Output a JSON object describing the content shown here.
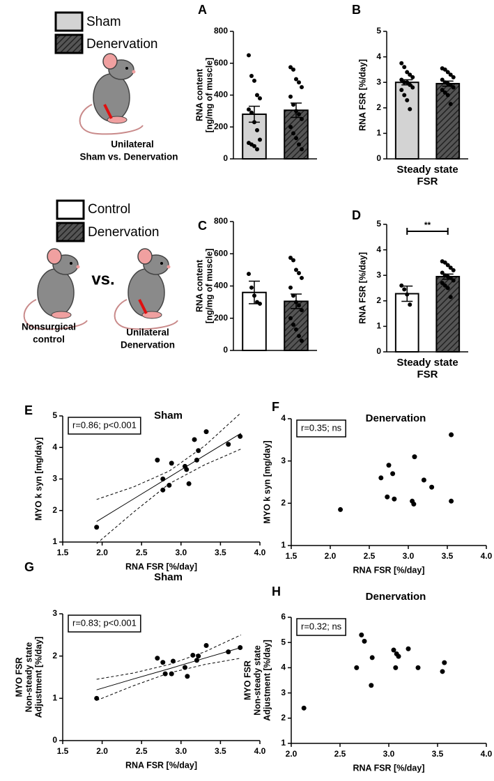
{
  "legends": [
    {
      "items": [
        "Sham",
        "Denervation"
      ]
    },
    {
      "items": [
        "Control",
        "Denervation"
      ]
    }
  ],
  "illustrations": [
    {
      "caption": [
        "Unilateral",
        "Sham vs. Denervation"
      ]
    },
    {
      "left_caption": [
        "Nonsurgical",
        "control"
      ],
      "separator": "vs.",
      "right_caption": [
        "Unilateral",
        "Denervation"
      ]
    }
  ],
  "chart_data": [
    {
      "type": "bar",
      "panel": "A",
      "ylabel": [
        "RNA content",
        "[ng/mg of muscle]"
      ],
      "ylim": [
        0,
        800
      ],
      "yticks": [
        0,
        200,
        400,
        600,
        800
      ],
      "series": [
        {
          "color": "#d3d3d3",
          "hatch": false,
          "values": [
            280
          ],
          "errors": [
            50
          ],
          "points": [
            650,
            520,
            490,
            400,
            380,
            310,
            290,
            230,
            180,
            120,
            100,
            90,
            80,
            60
          ]
        },
        {
          "color": "#555555",
          "hatch": true,
          "values": [
            305
          ],
          "errors": [
            45
          ],
          "points": [
            575,
            560,
            500,
            480,
            450,
            390,
            340,
            300,
            280,
            250,
            200,
            160,
            130,
            90,
            60
          ]
        }
      ]
    },
    {
      "type": "bar",
      "panel": "B",
      "ylabel": [
        "RNA  FSR [%/day]"
      ],
      "xlabel": [
        "Steady state",
        "FSR"
      ],
      "ylim": [
        0,
        5
      ],
      "yticks": [
        0,
        1,
        2,
        3,
        4,
        5
      ],
      "series": [
        {
          "color": "#d3d3d3",
          "hatch": false,
          "values": [
            3.0
          ],
          "errors": [
            0.1
          ],
          "points": [
            3.75,
            3.6,
            3.4,
            3.3,
            3.2,
            3.1,
            3.0,
            3.0,
            2.9,
            2.8,
            2.7,
            2.5,
            2.3,
            1.95
          ]
        },
        {
          "color": "#555555",
          "hatch": true,
          "values": [
            2.95
          ],
          "errors": [
            0.1
          ],
          "points": [
            3.55,
            3.5,
            3.4,
            3.3,
            3.2,
            3.1,
            3.0,
            2.95,
            2.9,
            2.8,
            2.7,
            2.6,
            2.5,
            2.15
          ]
        }
      ]
    },
    {
      "type": "bar",
      "panel": "C",
      "ylabel": [
        "RNA content",
        "[ng/mg of muscle]"
      ],
      "ylim": [
        0,
        800
      ],
      "yticks": [
        0,
        200,
        400,
        600,
        800
      ],
      "series": [
        {
          "color": "#ffffff",
          "hatch": false,
          "values": [
            360
          ],
          "errors": [
            70
          ],
          "points": [
            475,
            390,
            340,
            300,
            290
          ]
        },
        {
          "color": "#555555",
          "hatch": true,
          "values": [
            305
          ],
          "errors": [
            45
          ],
          "points": [
            575,
            560,
            500,
            480,
            450,
            390,
            340,
            300,
            280,
            250,
            200,
            160,
            130,
            90,
            60
          ]
        }
      ]
    },
    {
      "type": "bar",
      "panel": "D",
      "ylabel": [
        "RNA  FSR [%/day]"
      ],
      "xlabel": [
        "Steady state",
        "FSR"
      ],
      "annotation": "**",
      "ylim": [
        0,
        5
      ],
      "yticks": [
        0,
        1,
        2,
        3,
        4,
        5
      ],
      "series": [
        {
          "color": "#ffffff",
          "hatch": false,
          "values": [
            2.28
          ],
          "errors": [
            0.3
          ],
          "points": [
            2.6,
            2.45,
            2.25,
            1.85
          ]
        },
        {
          "color": "#555555",
          "hatch": true,
          "values": [
            2.95
          ],
          "errors": [
            0.1
          ],
          "points": [
            3.55,
            3.5,
            3.4,
            3.3,
            3.2,
            3.1,
            3.0,
            2.95,
            2.9,
            2.8,
            2.7,
            2.6,
            2.5,
            2.15
          ]
        }
      ]
    },
    {
      "type": "scatter",
      "panel": "E",
      "title": "Sham",
      "annotation": "r=0.86; p<0.001",
      "xlabel": [
        "RNA FSR [%/day]"
      ],
      "ylabel": [
        "MYO k syn [mg/day]"
      ],
      "xlim": [
        1.5,
        4.0
      ],
      "xticks": [
        1.5,
        {
          "value": 2,
          "label": "2.0"
        },
        2.5,
        {
          "value": 3,
          "label": "3.0"
        },
        3.5,
        {
          "value": 4,
          "label": "4.0"
        }
      ],
      "ylim": [
        1,
        5
      ],
      "yticks": [
        1,
        2,
        3,
        4,
        5
      ],
      "x": [
        1.93,
        2.7,
        2.77,
        2.77,
        2.85,
        2.88,
        3.05,
        3.07,
        3.1,
        3.17,
        3.2,
        3.22,
        3.32,
        3.6,
        3.75
      ],
      "y": [
        1.47,
        3.6,
        2.65,
        3.0,
        2.8,
        3.5,
        3.4,
        3.3,
        2.85,
        4.25,
        3.6,
        3.9,
        4.5,
        4.1,
        4.35
      ],
      "fit": {
        "x": [
          1.93,
          2.4,
          2.85,
          3.3,
          3.76
        ],
        "y": [
          1.65,
          2.37,
          3.06,
          3.75,
          4.45
        ],
        "upper": [
          2.35,
          2.75,
          3.25,
          4.05,
          5.1
        ],
        "lower": [
          0.95,
          1.95,
          2.85,
          3.45,
          3.95
        ]
      }
    },
    {
      "type": "scatter",
      "panel": "F",
      "title": "Denervation",
      "annotation": "r=0.35; ns",
      "xlabel": [
        "RNA FSR [%/day]"
      ],
      "ylabel": [
        "MYO k syn [mg/day]"
      ],
      "xlim": [
        1.5,
        4.0
      ],
      "xticks": [
        1.5,
        {
          "value": 2,
          "label": "2.0"
        },
        2.5,
        {
          "value": 3,
          "label": "3.0"
        },
        3.5,
        {
          "value": 4,
          "label": "4.0"
        }
      ],
      "ylim": [
        1,
        4
      ],
      "yticks": [
        1,
        2,
        3,
        4
      ],
      "x": [
        2.13,
        2.65,
        2.73,
        2.75,
        2.8,
        2.82,
        3.05,
        3.07,
        3.08,
        3.2,
        3.3,
        3.55,
        3.55
      ],
      "y": [
        1.85,
        2.6,
        2.15,
        2.9,
        2.7,
        2.1,
        2.05,
        1.98,
        3.1,
        2.55,
        2.38,
        2.05,
        3.62
      ]
    },
    {
      "type": "scatter",
      "panel": "G",
      "title": "Sham",
      "annotation": "r=0.83; p<0.001",
      "xlabel": [
        "RNA FSR [%/day]"
      ],
      "ylabel": [
        "MYO FSR",
        "Non-steady state",
        "Adjustment [%/day]"
      ],
      "xlim": [
        1.5,
        4.0
      ],
      "xticks": [
        1.5,
        {
          "value": 2,
          "label": "2.0"
        },
        2.5,
        {
          "value": 3,
          "label": "3.0"
        },
        3.5,
        {
          "value": 4,
          "label": "4.0"
        }
      ],
      "ylim": [
        0,
        3
      ],
      "yticks": [
        0,
        1,
        2,
        3
      ],
      "x": [
        1.93,
        2.7,
        2.77,
        2.8,
        2.88,
        2.9,
        3.05,
        3.08,
        3.15,
        3.2,
        3.22,
        3.32,
        3.6,
        3.75
      ],
      "y": [
        1.0,
        1.95,
        1.85,
        1.58,
        1.58,
        1.88,
        1.73,
        1.52,
        2.02,
        1.9,
        2.0,
        2.25,
        2.1,
        2.2
      ],
      "fit": {
        "x": [
          1.93,
          2.4,
          2.85,
          3.3,
          3.76
        ],
        "y": [
          1.2,
          1.46,
          1.7,
          1.95,
          2.2
        ],
        "upper": [
          1.45,
          1.6,
          1.8,
          2.1,
          2.5
        ],
        "lower": [
          0.95,
          1.3,
          1.6,
          1.8,
          1.95
        ]
      }
    },
    {
      "type": "scatter",
      "panel": "H",
      "title": "Denervation",
      "annotation": "r=0.32; ns",
      "xlabel": [
        "RNA FSR [%/day]"
      ],
      "ylabel": [
        "MYO FSR",
        "Non-steady state",
        "Adjustment [%/day]"
      ],
      "xlim": [
        2.0,
        4.0
      ],
      "xticks": [
        {
          "value": 2,
          "label": "2.0"
        },
        2.5,
        {
          "value": 3,
          "label": "3.0"
        },
        3.5,
        {
          "value": 4,
          "label": "4.0"
        }
      ],
      "ylim": [
        1,
        6
      ],
      "yticks": [
        1,
        2,
        3,
        4,
        5,
        6
      ],
      "x": [
        2.13,
        2.67,
        2.72,
        2.75,
        2.82,
        2.83,
        3.05,
        3.07,
        3.08,
        3.1,
        3.2,
        3.3,
        3.55,
        3.57
      ],
      "y": [
        2.4,
        4.0,
        5.3,
        5.05,
        3.3,
        4.4,
        4.7,
        4.0,
        4.55,
        4.45,
        4.75,
        4.0,
        3.85,
        4.2
      ]
    }
  ]
}
